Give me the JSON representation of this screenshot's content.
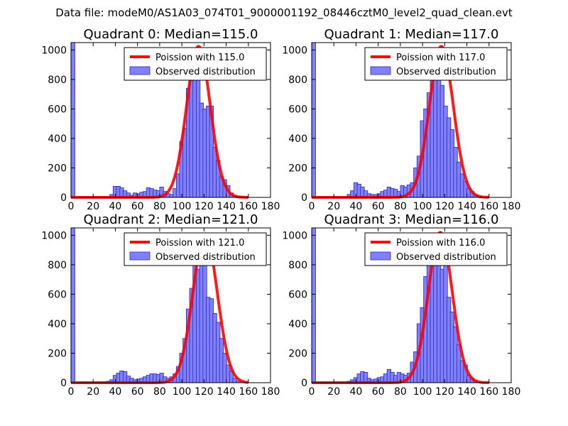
{
  "figure": {
    "suptitle": "Data file: modeM0/AS1A03_074T01_9000001192_08446cztM0_level2_quad_clean.evt"
  },
  "chart_data": [
    {
      "type": "bar",
      "title": "Quadrant 0: Median=115.0",
      "median": 115.0,
      "xlim": [
        0,
        180
      ],
      "ylim": [
        0,
        1050
      ],
      "xticks": [
        0,
        20,
        40,
        60,
        80,
        100,
        120,
        140,
        160,
        180
      ],
      "xtick_labels": [
        "0",
        "20",
        "40",
        "60",
        "80",
        "100",
        "120",
        "140",
        "160",
        "180"
      ],
      "yticks": [
        0,
        200,
        400,
        600,
        800,
        1000
      ],
      "ytick_labels": [
        "0",
        "200",
        "400",
        "600",
        "800",
        "1000"
      ],
      "bin_width": 3.5,
      "series": [
        {
          "name": "Observed distribution",
          "kind": "histogram",
          "color": "#8080ff",
          "bins": [
            [
              0,
              1050
            ],
            [
              35,
              20
            ],
            [
              38,
              75
            ],
            [
              41,
              75
            ],
            [
              44,
              65
            ],
            [
              47,
              45
            ],
            [
              50,
              30
            ],
            [
              53,
              15
            ],
            [
              56,
              30
            ],
            [
              59,
              25
            ],
            [
              62,
              35
            ],
            [
              65,
              40
            ],
            [
              68,
              65
            ],
            [
              71,
              60
            ],
            [
              74,
              50
            ],
            [
              77,
              45
            ],
            [
              80,
              70
            ],
            [
              83,
              40
            ],
            [
              86,
              25
            ],
            [
              89,
              20
            ],
            [
              92,
              60
            ],
            [
              95,
              160
            ],
            [
              98,
              380
            ],
            [
              101,
              470
            ],
            [
              104,
              740
            ],
            [
              107,
              920
            ],
            [
              110,
              900
            ],
            [
              113,
              860
            ],
            [
              116,
              640
            ],
            [
              119,
              600
            ],
            [
              122,
              620
            ],
            [
              125,
              620
            ],
            [
              128,
              340
            ],
            [
              131,
              250
            ],
            [
              134,
              140
            ],
            [
              137,
              120
            ],
            [
              140,
              80
            ],
            [
              143,
              30
            ],
            [
              146,
              15
            ],
            [
              149,
              10
            ],
            [
              152,
              5
            ]
          ]
        },
        {
          "name": "Poission with 115.0",
          "kind": "line",
          "color": "#ff0000",
          "mean": 115.0,
          "peak": 1025,
          "sigma": 10.7
        }
      ],
      "legend": {
        "placement": "upper-right",
        "line_label": "Poission with 115.0",
        "bar_label": "Observed distribution"
      }
    },
    {
      "type": "bar",
      "title": "Quadrant 1: Median=117.0",
      "median": 117.0,
      "xlim": [
        0,
        180
      ],
      "ylim": [
        0,
        1050
      ],
      "xticks": [
        0,
        20,
        40,
        60,
        80,
        100,
        120,
        140,
        160,
        180
      ],
      "xtick_labels": [
        "0",
        "20",
        "40",
        "60",
        "80",
        "100",
        "120",
        "140",
        "160",
        "180"
      ],
      "yticks": [
        0,
        200,
        400,
        600,
        800,
        1000
      ],
      "ytick_labels": [
        "0",
        "200",
        "400",
        "600",
        "800",
        "1000"
      ],
      "bin_width": 3.5,
      "series": [
        {
          "name": "Observed distribution",
          "kind": "histogram",
          "color": "#8080ff",
          "bins": [
            [
              0,
              1050
            ],
            [
              32,
              20
            ],
            [
              35,
              45
            ],
            [
              38,
              100
            ],
            [
              41,
              90
            ],
            [
              44,
              70
            ],
            [
              47,
              45
            ],
            [
              50,
              25
            ],
            [
              53,
              20
            ],
            [
              56,
              20
            ],
            [
              59,
              25
            ],
            [
              62,
              40
            ],
            [
              65,
              50
            ],
            [
              68,
              70
            ],
            [
              71,
              60
            ],
            [
              74,
              55
            ],
            [
              77,
              40
            ],
            [
              80,
              80
            ],
            [
              83,
              70
            ],
            [
              86,
              85
            ],
            [
              89,
              100
            ],
            [
              92,
              200
            ],
            [
              95,
              280
            ],
            [
              98,
              520
            ],
            [
              101,
              600
            ],
            [
              104,
              710
            ],
            [
              107,
              900
            ],
            [
              110,
              950
            ],
            [
              113,
              880
            ],
            [
              116,
              760
            ],
            [
              119,
              620
            ],
            [
              122,
              540
            ],
            [
              125,
              460
            ],
            [
              128,
              340
            ],
            [
              131,
              240
            ],
            [
              134,
              160
            ],
            [
              137,
              110
            ],
            [
              140,
              60
            ],
            [
              143,
              40
            ],
            [
              146,
              20
            ],
            [
              149,
              10
            ]
          ]
        },
        {
          "name": "Poission with 117.0",
          "kind": "line",
          "color": "#ff0000",
          "mean": 117.0,
          "peak": 1025,
          "sigma": 10.8
        }
      ],
      "legend": {
        "placement": "upper-right",
        "line_label": "Poission with 117.0",
        "bar_label": "Observed distribution"
      }
    },
    {
      "type": "bar",
      "title": "Quadrant 2: Median=121.0",
      "median": 121.0,
      "xlim": [
        0,
        180
      ],
      "ylim": [
        0,
        1050
      ],
      "xticks": [
        0,
        20,
        40,
        60,
        80,
        100,
        120,
        140,
        160,
        180
      ],
      "xtick_labels": [
        "0",
        "20",
        "40",
        "60",
        "80",
        "100",
        "120",
        "140",
        "160",
        "180"
      ],
      "yticks": [
        0,
        200,
        400,
        600,
        800,
        1000
      ],
      "ytick_labels": [
        "0",
        "200",
        "400",
        "600",
        "800",
        "1000"
      ],
      "bin_width": 3.5,
      "series": [
        {
          "name": "Observed distribution",
          "kind": "histogram",
          "color": "#8080ff",
          "bins": [
            [
              0,
              1050
            ],
            [
              32,
              10
            ],
            [
              35,
              20
            ],
            [
              38,
              50
            ],
            [
              41,
              65
            ],
            [
              44,
              80
            ],
            [
              47,
              75
            ],
            [
              50,
              45
            ],
            [
              53,
              30
            ],
            [
              56,
              20
            ],
            [
              59,
              25
            ],
            [
              62,
              30
            ],
            [
              65,
              40
            ],
            [
              68,
              50
            ],
            [
              71,
              60
            ],
            [
              74,
              60
            ],
            [
              77,
              55
            ],
            [
              80,
              65
            ],
            [
              83,
              40
            ],
            [
              86,
              30
            ],
            [
              89,
              40
            ],
            [
              92,
              60
            ],
            [
              95,
              110
            ],
            [
              98,
              200
            ],
            [
              101,
              300
            ],
            [
              104,
              500
            ],
            [
              107,
              640
            ],
            [
              110,
              810
            ],
            [
              113,
              770
            ],
            [
              116,
              850
            ],
            [
              119,
              800
            ],
            [
              122,
              580
            ],
            [
              125,
              570
            ],
            [
              128,
              470
            ],
            [
              131,
              410
            ],
            [
              134,
              300
            ],
            [
              137,
              200
            ],
            [
              140,
              120
            ],
            [
              143,
              80
            ],
            [
              146,
              30
            ],
            [
              149,
              10
            ]
          ]
        },
        {
          "name": "Poission with 121.0",
          "kind": "line",
          "color": "#ff0000",
          "mean": 121.0,
          "peak": 1010,
          "sigma": 11.0
        }
      ],
      "legend": {
        "placement": "upper-right",
        "line_label": "Poission with 121.0",
        "bar_label": "Observed distribution"
      }
    },
    {
      "type": "bar",
      "title": "Quadrant 3: Median=116.0",
      "median": 116.0,
      "xlim": [
        0,
        180
      ],
      "ylim": [
        0,
        1050
      ],
      "xticks": [
        0,
        20,
        40,
        60,
        80,
        100,
        120,
        140,
        160,
        180
      ],
      "xtick_labels": [
        "0",
        "20",
        "40",
        "60",
        "80",
        "100",
        "120",
        "140",
        "160",
        "180"
      ],
      "yticks": [
        0,
        200,
        400,
        600,
        800,
        1000
      ],
      "ytick_labels": [
        "0",
        "200",
        "400",
        "600",
        "800",
        "1000"
      ],
      "bin_width": 3.5,
      "series": [
        {
          "name": "Observed distribution",
          "kind": "histogram",
          "color": "#8080ff",
          "bins": [
            [
              0,
              1050
            ],
            [
              32,
              10
            ],
            [
              35,
              20
            ],
            [
              38,
              35
            ],
            [
              41,
              60
            ],
            [
              44,
              75
            ],
            [
              47,
              70
            ],
            [
              50,
              30
            ],
            [
              53,
              20
            ],
            [
              56,
              25
            ],
            [
              59,
              35
            ],
            [
              62,
              40
            ],
            [
              65,
              60
            ],
            [
              68,
              90
            ],
            [
              71,
              70
            ],
            [
              74,
              50
            ],
            [
              77,
              70
            ],
            [
              80,
              60
            ],
            [
              83,
              50
            ],
            [
              86,
              65
            ],
            [
              89,
              140
            ],
            [
              92,
              210
            ],
            [
              95,
              400
            ],
            [
              98,
              510
            ],
            [
              101,
              720
            ],
            [
              104,
              900
            ],
            [
              107,
              920
            ],
            [
              110,
              880
            ],
            [
              113,
              820
            ],
            [
              116,
              770
            ],
            [
              119,
              850
            ],
            [
              122,
              580
            ],
            [
              125,
              480
            ],
            [
              128,
              380
            ],
            [
              131,
              260
            ],
            [
              134,
              150
            ],
            [
              137,
              120
            ],
            [
              140,
              50
            ],
            [
              143,
              30
            ],
            [
              146,
              15
            ],
            [
              149,
              5
            ]
          ]
        },
        {
          "name": "Poission with 116.0",
          "kind": "line",
          "color": "#ff0000",
          "mean": 116.0,
          "peak": 1020,
          "sigma": 10.8
        }
      ],
      "legend": {
        "placement": "upper-right",
        "line_label": "Poission with 116.0",
        "bar_label": "Observed distribution"
      }
    }
  ]
}
